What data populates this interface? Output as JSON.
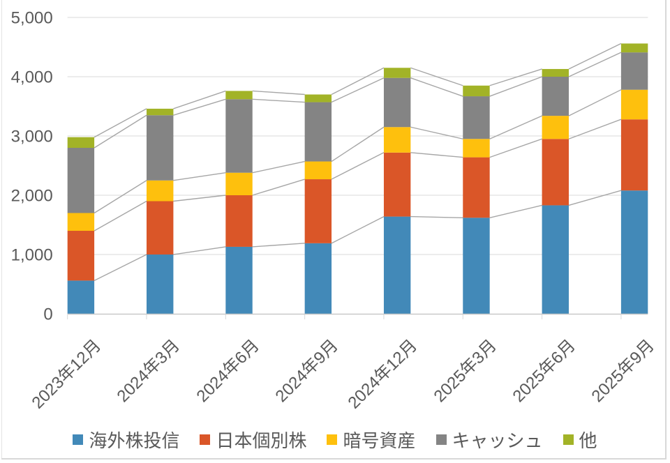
{
  "chart_data": {
    "type": "bar",
    "stacked": true,
    "title": "",
    "xlabel": "",
    "ylabel": "",
    "categories": [
      "2023年12月",
      "2024年3月",
      "2024年6月",
      "2024年9月",
      "2024年12月",
      "2025年3月",
      "2025年6月",
      "2025年9月"
    ],
    "series": [
      {
        "name": "海外株投信",
        "color": "#4289B8",
        "values": [
          560,
          1000,
          1130,
          1190,
          1640,
          1620,
          1830,
          2080
        ]
      },
      {
        "name": "日本個別株",
        "color": "#DA5628",
        "values": [
          840,
          900,
          870,
          1080,
          1080,
          1020,
          1120,
          1200
        ]
      },
      {
        "name": "暗号資産",
        "color": "#FEC00D",
        "values": [
          300,
          350,
          380,
          300,
          430,
          310,
          390,
          500
        ]
      },
      {
        "name": "キャッシュ",
        "color": "#848484",
        "values": [
          1100,
          1100,
          1240,
          1000,
          830,
          720,
          660,
          630
        ]
      },
      {
        "name": "他",
        "color": "#A2B327",
        "values": [
          180,
          110,
          140,
          130,
          170,
          180,
          130,
          150
        ]
      }
    ],
    "stack_totals": [
      2980,
      3460,
      3760,
      3700,
      4150,
      3850,
      4130,
      4560
    ],
    "ylim": [
      0,
      5000
    ],
    "ytick_interval": 1000,
    "ytick_labels": [
      "0",
      "1,000",
      "2,000",
      "3,000",
      "4,000",
      "5,000"
    ],
    "grid": true,
    "series_lines": true,
    "legend_position": "bottom",
    "colors": {
      "gridline": "#D9D9D9",
      "axis_line": "#C9C9C9",
      "tick_mark": "#D9D9D9",
      "series_line": "#A6A6A6",
      "text": "#595959",
      "chart_border": "#D8D8D8"
    }
  }
}
